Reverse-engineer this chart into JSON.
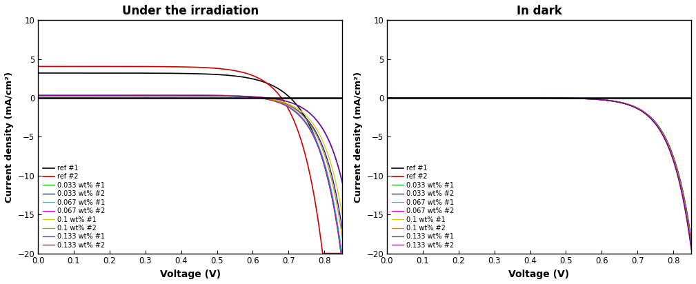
{
  "title_left": "Under the irradiation",
  "title_right": "In dark",
  "xlabel": "Voltage (V)",
  "ylabel": "Current density (mA/cm²)",
  "xlim": [
    0.0,
    0.85
  ],
  "ylim": [
    -20,
    10
  ],
  "yticks": [
    -20,
    -15,
    -10,
    -5,
    0,
    5,
    10
  ],
  "xticks": [
    0.0,
    0.1,
    0.2,
    0.3,
    0.4,
    0.5,
    0.6,
    0.7,
    0.8
  ],
  "series": [
    {
      "label": "ref #1",
      "color": "#000000",
      "lw": 1.2,
      "isc_l": 3.2,
      "voc_l": 0.705,
      "n_l": 2.8,
      "voc_d": 0.615,
      "n_d": 2.2,
      "i0_d": 19.0
    },
    {
      "label": "ref #2",
      "color": "#cc0000",
      "lw": 1.2,
      "isc_l": 4.05,
      "voc_l": 0.68,
      "n_l": 2.5,
      "voc_d": 0.6,
      "n_d": 2.2,
      "i0_d": 19.0
    },
    {
      "label": "0.033 wt% #1",
      "color": "#00bb00",
      "lw": 0.9,
      "isc_l": 0.35,
      "voc_l": 0.615,
      "n_l": 2.2,
      "voc_d": 0.625,
      "n_d": 2.2,
      "i0_d": 18.0
    },
    {
      "label": "0.033 wt% #2",
      "color": "#0000cc",
      "lw": 0.9,
      "isc_l": 0.3,
      "voc_l": 0.62,
      "n_l": 2.2,
      "voc_d": 0.635,
      "n_d": 2.2,
      "i0_d": 18.2
    },
    {
      "label": "0.067 wt% #1",
      "color": "#00cccc",
      "lw": 0.9,
      "isc_l": 0.4,
      "voc_l": 0.625,
      "n_l": 2.2,
      "voc_d": 0.645,
      "n_d": 2.2,
      "i0_d": 18.5
    },
    {
      "label": "0.067 wt% #2",
      "color": "#dd00dd",
      "lw": 0.9,
      "isc_l": 0.38,
      "voc_l": 0.62,
      "n_l": 2.2,
      "voc_d": 0.64,
      "n_d": 2.2,
      "i0_d": 18.3
    },
    {
      "label": "0.1 wt% #1",
      "color": "#cccc00",
      "lw": 0.9,
      "isc_l": 0.32,
      "voc_l": 0.63,
      "n_l": 2.2,
      "voc_d": 0.655,
      "n_d": 2.2,
      "i0_d": 18.8
    },
    {
      "label": "0.1 wt% #2",
      "color": "#cc8800",
      "lw": 0.9,
      "isc_l": 0.35,
      "voc_l": 0.625,
      "n_l": 2.2,
      "voc_d": 0.65,
      "n_d": 2.2,
      "i0_d": 18.6
    },
    {
      "label": "0.133 wt% #1",
      "color": "#3333bb",
      "lw": 0.9,
      "isc_l": 0.28,
      "voc_l": 0.64,
      "n_l": 2.2,
      "voc_d": 0.67,
      "n_d": 2.2,
      "i0_d": 19.2
    },
    {
      "label": "0.133 wt% #2",
      "color": "#880088",
      "lw": 0.9,
      "isc_l": 0.3,
      "voc_l": 0.645,
      "n_l": 2.2,
      "voc_d": 0.675,
      "n_d": 2.2,
      "i0_d": 19.5
    }
  ]
}
